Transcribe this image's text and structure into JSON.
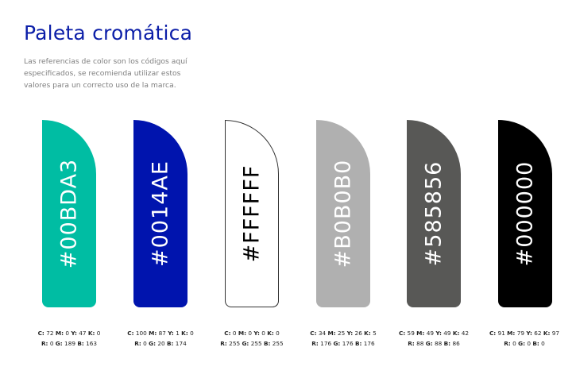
{
  "header": {
    "title": "Paleta cromática",
    "description": "Las referencias de color son los códigos aquí especificados, se recomienda utilizar estos valores para un correcto uso de la marca."
  },
  "swatches": [
    {
      "hex": "#00BDA3",
      "color": "#00BDA3",
      "text_color": "#ffffff",
      "c": "72",
      "m": "0",
      "y": "47",
      "k": "0",
      "r": "0",
      "g": "189",
      "b": "163"
    },
    {
      "hex": "#0014AE",
      "color": "#0014AE",
      "text_color": "#ffffff",
      "c": "100",
      "m": "87",
      "y": "1",
      "k": "0",
      "r": "0",
      "g": "20",
      "b": "174"
    },
    {
      "hex": "#FFFFFF",
      "color": "#FFFFFF",
      "text_color": "#000000",
      "c": "0",
      "m": "0",
      "y": "0",
      "k": "0",
      "r": "255",
      "g": "255",
      "b": "255"
    },
    {
      "hex": "#B0B0B0",
      "color": "#B0B0B0",
      "text_color": "#ffffff",
      "c": "34",
      "m": "25",
      "y": "26",
      "k": "5",
      "r": "176",
      "g": "176",
      "b": "176"
    },
    {
      "hex": "#585856",
      "color": "#585856",
      "text_color": "#ffffff",
      "c": "59",
      "m": "49",
      "y": "49",
      "k": "42",
      "r": "88",
      "g": "88",
      "b": "86"
    },
    {
      "hex": "#000000",
      "color": "#000000",
      "text_color": "#ffffff",
      "c": "91",
      "m": "79",
      "y": "62",
      "k": "97",
      "r": "0",
      "g": "0",
      "b": "0"
    }
  ]
}
